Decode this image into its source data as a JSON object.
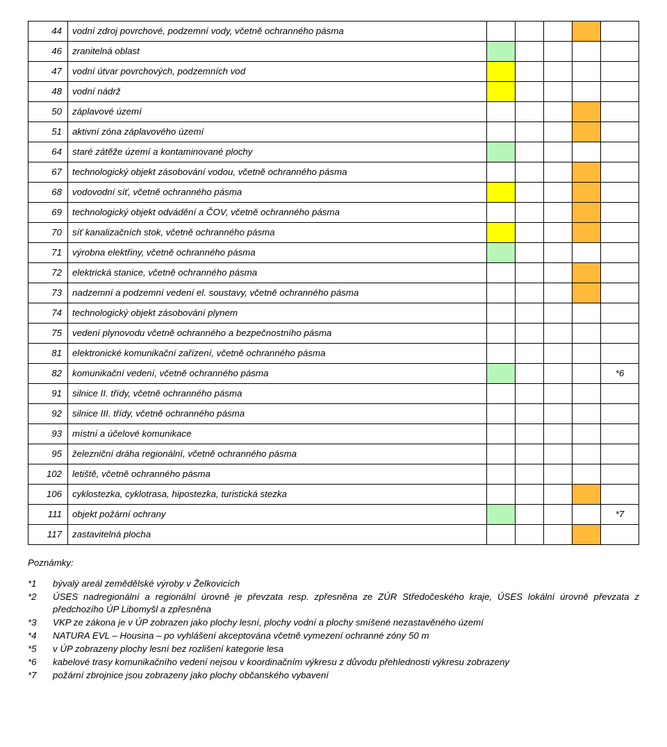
{
  "colors": {
    "green": "#b8f5b8",
    "yellow": "#ffff00",
    "orange": "#ffba3a"
  },
  "col_widths": {
    "num": 42,
    "c": 40,
    "note": 42
  },
  "rows": [
    {
      "num": "44",
      "desc": "vodní zdroj povrchové, podzemní vody, včetně ochranného pásma",
      "c": [
        "",
        "",
        "",
        "orange",
        ""
      ]
    },
    {
      "num": "46",
      "desc": "zranitelná oblast",
      "c": [
        "green",
        "",
        "",
        "",
        ""
      ]
    },
    {
      "num": "47",
      "desc": "vodní útvar povrchových, podzemních vod",
      "c": [
        "yellow",
        "",
        "",
        "",
        ""
      ]
    },
    {
      "num": "48",
      "desc": "vodní nádrž",
      "c": [
        "yellow",
        "",
        "",
        "",
        ""
      ]
    },
    {
      "num": "50",
      "desc": "záplavové území",
      "c": [
        "",
        "",
        "",
        "orange",
        ""
      ]
    },
    {
      "num": "51",
      "desc": "aktivní zóna záplavového území",
      "c": [
        "",
        "",
        "",
        "orange",
        ""
      ]
    },
    {
      "num": "64",
      "desc": "staré zátěže území a kontaminované plochy",
      "c": [
        "green",
        "",
        "",
        "",
        ""
      ]
    },
    {
      "num": "67",
      "desc": "technologický objekt zásobování vodou, včetně ochranného pásma",
      "c": [
        "",
        "",
        "",
        "orange",
        ""
      ]
    },
    {
      "num": "68",
      "desc": "vodovodní síť, včetně ochranného pásma",
      "c": [
        "yellow",
        "",
        "",
        "orange",
        ""
      ]
    },
    {
      "num": "69",
      "desc": "technologický objekt odvádění a ČOV, včetně ochranného pásma",
      "c": [
        "",
        "",
        "",
        "orange",
        ""
      ]
    },
    {
      "num": "70",
      "desc": "síť kanalizačních stok, včetně ochranného pásma",
      "c": [
        "yellow",
        "",
        "",
        "orange",
        ""
      ]
    },
    {
      "num": "71",
      "desc": "výrobna elektřiny, včetně ochranného pásma",
      "c": [
        "green",
        "",
        "",
        "",
        ""
      ]
    },
    {
      "num": "72",
      "desc": "elektrická stanice, včetně ochranného pásma",
      "c": [
        "",
        "",
        "",
        "orange",
        ""
      ]
    },
    {
      "num": "73",
      "desc": "nadzemní a podzemní vedení el. soustavy, včetně ochranného pásma",
      "c": [
        "",
        "",
        "",
        "orange",
        ""
      ]
    },
    {
      "num": "74",
      "desc": "technologický objekt zásobování plynem",
      "c": [
        "",
        "",
        "",
        "",
        ""
      ]
    },
    {
      "num": "75",
      "desc": "vedení plynovodu včetně ochranného a bezpečnostního pásma",
      "c": [
        "",
        "",
        "",
        "",
        ""
      ]
    },
    {
      "num": "81",
      "desc": "elektronické komunikační zařízení, včetně ochranného pásma",
      "c": [
        "",
        "",
        "",
        "",
        ""
      ]
    },
    {
      "num": "82",
      "desc": "komunikační vedení, včetně ochranného pásma",
      "c": [
        "green",
        "",
        "",
        "",
        "*6"
      ]
    },
    {
      "num": "91",
      "desc": "silnice II. třídy, včetně ochranného pásma",
      "c": [
        "",
        "",
        "",
        "",
        ""
      ]
    },
    {
      "num": "92",
      "desc": "silnice III. třídy, včetně ochranného pásma",
      "c": [
        "",
        "",
        "",
        "",
        ""
      ]
    },
    {
      "num": "93",
      "desc": "místní a účelové komunikace",
      "c": [
        "",
        "",
        "",
        "",
        ""
      ]
    },
    {
      "num": "95",
      "desc": "železniční dráha regionální, včetně ochranného pásma",
      "c": [
        "",
        "",
        "",
        "",
        ""
      ]
    },
    {
      "num": "102",
      "desc": "letiště, včetně ochranného pásma",
      "c": [
        "",
        "",
        "",
        "",
        ""
      ]
    },
    {
      "num": "106",
      "desc": "cyklostezka, cyklotrasa, hipostezka, turistická stezka",
      "c": [
        "",
        "",
        "",
        "orange",
        ""
      ]
    },
    {
      "num": "111",
      "desc": "objekt požární ochrany",
      "c": [
        "green",
        "",
        "",
        "",
        "*7"
      ]
    },
    {
      "num": "117",
      "desc": "zastavitelná plocha",
      "c": [
        "",
        "",
        "",
        "orange",
        ""
      ]
    }
  ],
  "notes_title": "Poznámky:",
  "notes": [
    {
      "k": "*1",
      "v": "bývalý areál zemědělské výroby v Želkovicích",
      "just": false
    },
    {
      "k": "*2",
      "v": "ÚSES nadregionální a regionální úrovně je převzata resp. zpřesněna ze ZÚR Středočeského kraje, ÚSES lokální úrovně převzata z předchozího ÚP Libomyšl a zpřesněna",
      "just": true
    },
    {
      "k": "*3",
      "v": "VKP ze zákona je v ÚP zobrazen jako plochy lesní, plochy vodní a plochy smíšené nezastavěného území",
      "just": true
    },
    {
      "k": "*4",
      "v": "NATURA EVL – Housina – po vyhlášení akceptována včetně vymezení ochranné zóny 50 m",
      "just": false
    },
    {
      "k": "*5",
      "v": "v ÚP zobrazeny plochy lesní bez rozlišení kategorie lesa",
      "just": false
    },
    {
      "k": "*6",
      "v": "kabelové trasy komunikačního vedení nejsou v koordinačním výkresu z důvodu přehlednosti výkresu zobrazeny",
      "just": true
    },
    {
      "k": "*7",
      "v": "požární zbrojnice jsou zobrazeny jako plochy občanského vybavení",
      "just": false
    }
  ]
}
